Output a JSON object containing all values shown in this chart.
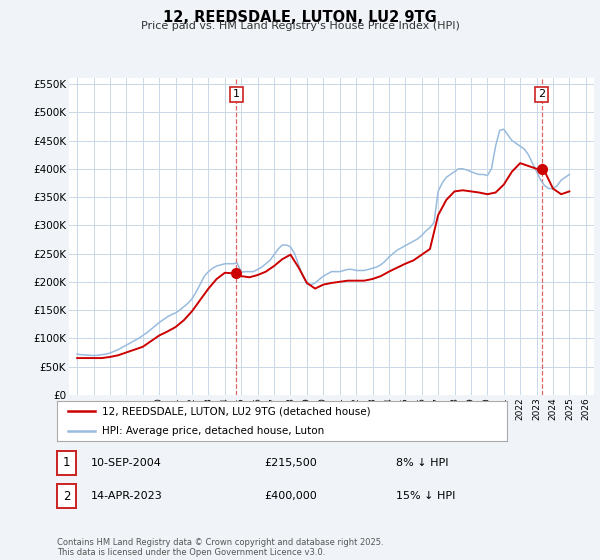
{
  "title": "12, REEDSDALE, LUTON, LU2 9TG",
  "subtitle": "Price paid vs. HM Land Registry's House Price Index (HPI)",
  "ylim": [
    0,
    560000
  ],
  "xlim": [
    1994.5,
    2026.5
  ],
  "yticks": [
    0,
    50000,
    100000,
    150000,
    200000,
    250000,
    300000,
    350000,
    400000,
    450000,
    500000,
    550000
  ],
  "ytick_labels": [
    "£0",
    "£50K",
    "£100K",
    "£150K",
    "£200K",
    "£250K",
    "£300K",
    "£350K",
    "£400K",
    "£450K",
    "£500K",
    "£550K"
  ],
  "xticks": [
    1995,
    1996,
    1997,
    1998,
    1999,
    2000,
    2001,
    2002,
    2003,
    2004,
    2005,
    2006,
    2007,
    2008,
    2009,
    2010,
    2011,
    2012,
    2013,
    2014,
    2015,
    2016,
    2017,
    2018,
    2019,
    2020,
    2021,
    2022,
    2023,
    2024,
    2025,
    2026
  ],
  "bg_color": "#f0f4f8",
  "plot_bg_color": "#ffffff",
  "grid_color": "#c8d8e8",
  "red_color": "#cc0000",
  "blue_color": "#99bbdd",
  "vline_color": "#dd6666",
  "sale1_x": 2004.7,
  "sale1_y": 215500,
  "sale2_x": 2023.3,
  "sale2_y": 400000,
  "legend_line1": "12, REEDSDALE, LUTON, LU2 9TG (detached house)",
  "legend_line2": "HPI: Average price, detached house, Luton",
  "table_row1": [
    "1",
    "10-SEP-2004",
    "£215,500",
    "8% ↓ HPI"
  ],
  "table_row2": [
    "2",
    "14-APR-2023",
    "£400,000",
    "15% ↓ HPI"
  ],
  "footer": "Contains HM Land Registry data © Crown copyright and database right 2025.\nThis data is licensed under the Open Government Licence v3.0.",
  "hpi_years": [
    1995.0,
    1995.25,
    1995.5,
    1995.75,
    1996.0,
    1996.25,
    1996.5,
    1996.75,
    1997.0,
    1997.25,
    1997.5,
    1997.75,
    1998.0,
    1998.25,
    1998.5,
    1998.75,
    1999.0,
    1999.25,
    1999.5,
    1999.75,
    2000.0,
    2000.25,
    2000.5,
    2000.75,
    2001.0,
    2001.25,
    2001.5,
    2001.75,
    2002.0,
    2002.25,
    2002.5,
    2002.75,
    2003.0,
    2003.25,
    2003.5,
    2003.75,
    2004.0,
    2004.25,
    2004.5,
    2004.75,
    2005.0,
    2005.25,
    2005.5,
    2005.75,
    2006.0,
    2006.25,
    2006.5,
    2006.75,
    2007.0,
    2007.25,
    2007.5,
    2007.75,
    2008.0,
    2008.25,
    2008.5,
    2008.75,
    2009.0,
    2009.25,
    2009.5,
    2009.75,
    2010.0,
    2010.25,
    2010.5,
    2010.75,
    2011.0,
    2011.25,
    2011.5,
    2011.75,
    2012.0,
    2012.25,
    2012.5,
    2012.75,
    2013.0,
    2013.25,
    2013.5,
    2013.75,
    2014.0,
    2014.25,
    2014.5,
    2014.75,
    2015.0,
    2015.25,
    2015.5,
    2015.75,
    2016.0,
    2016.25,
    2016.5,
    2016.75,
    2017.0,
    2017.25,
    2017.5,
    2017.75,
    2018.0,
    2018.25,
    2018.5,
    2018.75,
    2019.0,
    2019.25,
    2019.5,
    2019.75,
    2020.0,
    2020.25,
    2020.5,
    2020.75,
    2021.0,
    2021.25,
    2021.5,
    2021.75,
    2022.0,
    2022.25,
    2022.5,
    2022.75,
    2023.0,
    2023.25,
    2023.5,
    2023.75,
    2024.0,
    2024.25,
    2024.5,
    2024.75,
    2025.0
  ],
  "hpi_values": [
    72000,
    71000,
    70500,
    70000,
    69500,
    70000,
    71000,
    72000,
    74000,
    77000,
    80000,
    84000,
    88000,
    92000,
    96000,
    100000,
    105000,
    110000,
    116000,
    122000,
    128000,
    133000,
    138000,
    142000,
    145000,
    150000,
    156000,
    162000,
    170000,
    182000,
    196000,
    210000,
    218000,
    224000,
    228000,
    230000,
    232000,
    232000,
    232000,
    233000,
    217000,
    218000,
    218000,
    218000,
    222000,
    226000,
    232000,
    238000,
    248000,
    258000,
    265000,
    265000,
    262000,
    250000,
    230000,
    210000,
    196000,
    195000,
    198000,
    204000,
    210000,
    214000,
    218000,
    218000,
    218000,
    220000,
    222000,
    222000,
    220000,
    220000,
    220000,
    222000,
    224000,
    226000,
    230000,
    236000,
    244000,
    250000,
    256000,
    260000,
    264000,
    268000,
    272000,
    276000,
    282000,
    290000,
    296000,
    305000,
    360000,
    375000,
    385000,
    390000,
    395000,
    400000,
    400000,
    398000,
    395000,
    392000,
    390000,
    390000,
    388000,
    400000,
    440000,
    468000,
    470000,
    460000,
    450000,
    445000,
    440000,
    435000,
    425000,
    410000,
    395000,
    380000,
    370000,
    365000,
    365000,
    370000,
    380000,
    385000,
    390000
  ],
  "red_years": [
    1995.0,
    1995.5,
    1996.0,
    1996.5,
    1997.0,
    1997.5,
    1998.0,
    1998.5,
    1999.0,
    1999.5,
    2000.0,
    2000.5,
    2001.0,
    2001.5,
    2002.0,
    2002.5,
    2003.0,
    2003.5,
    2004.0,
    2004.5,
    2004.7,
    2005.0,
    2005.5,
    2006.0,
    2006.5,
    2007.0,
    2007.5,
    2008.0,
    2008.5,
    2009.0,
    2009.5,
    2010.0,
    2010.5,
    2011.0,
    2011.5,
    2012.0,
    2012.5,
    2013.0,
    2013.5,
    2014.0,
    2014.5,
    2015.0,
    2015.5,
    2016.0,
    2016.5,
    2017.0,
    2017.5,
    2018.0,
    2018.5,
    2019.0,
    2019.5,
    2020.0,
    2020.5,
    2021.0,
    2021.5,
    2022.0,
    2022.5,
    2023.0,
    2023.3,
    2023.5,
    2024.0,
    2024.5,
    2025.0
  ],
  "red_values": [
    65000,
    65000,
    65000,
    65000,
    67000,
    70000,
    75000,
    80000,
    85000,
    95000,
    105000,
    112000,
    120000,
    132000,
    148000,
    168000,
    188000,
    205000,
    216000,
    215000,
    215500,
    210000,
    208000,
    212000,
    218000,
    228000,
    240000,
    248000,
    225000,
    198000,
    188000,
    195000,
    198000,
    200000,
    202000,
    202000,
    202000,
    205000,
    210000,
    218000,
    225000,
    232000,
    238000,
    248000,
    258000,
    318000,
    345000,
    360000,
    362000,
    360000,
    358000,
    355000,
    358000,
    372000,
    395000,
    410000,
    405000,
    400000,
    400000,
    395000,
    365000,
    355000,
    360000
  ]
}
